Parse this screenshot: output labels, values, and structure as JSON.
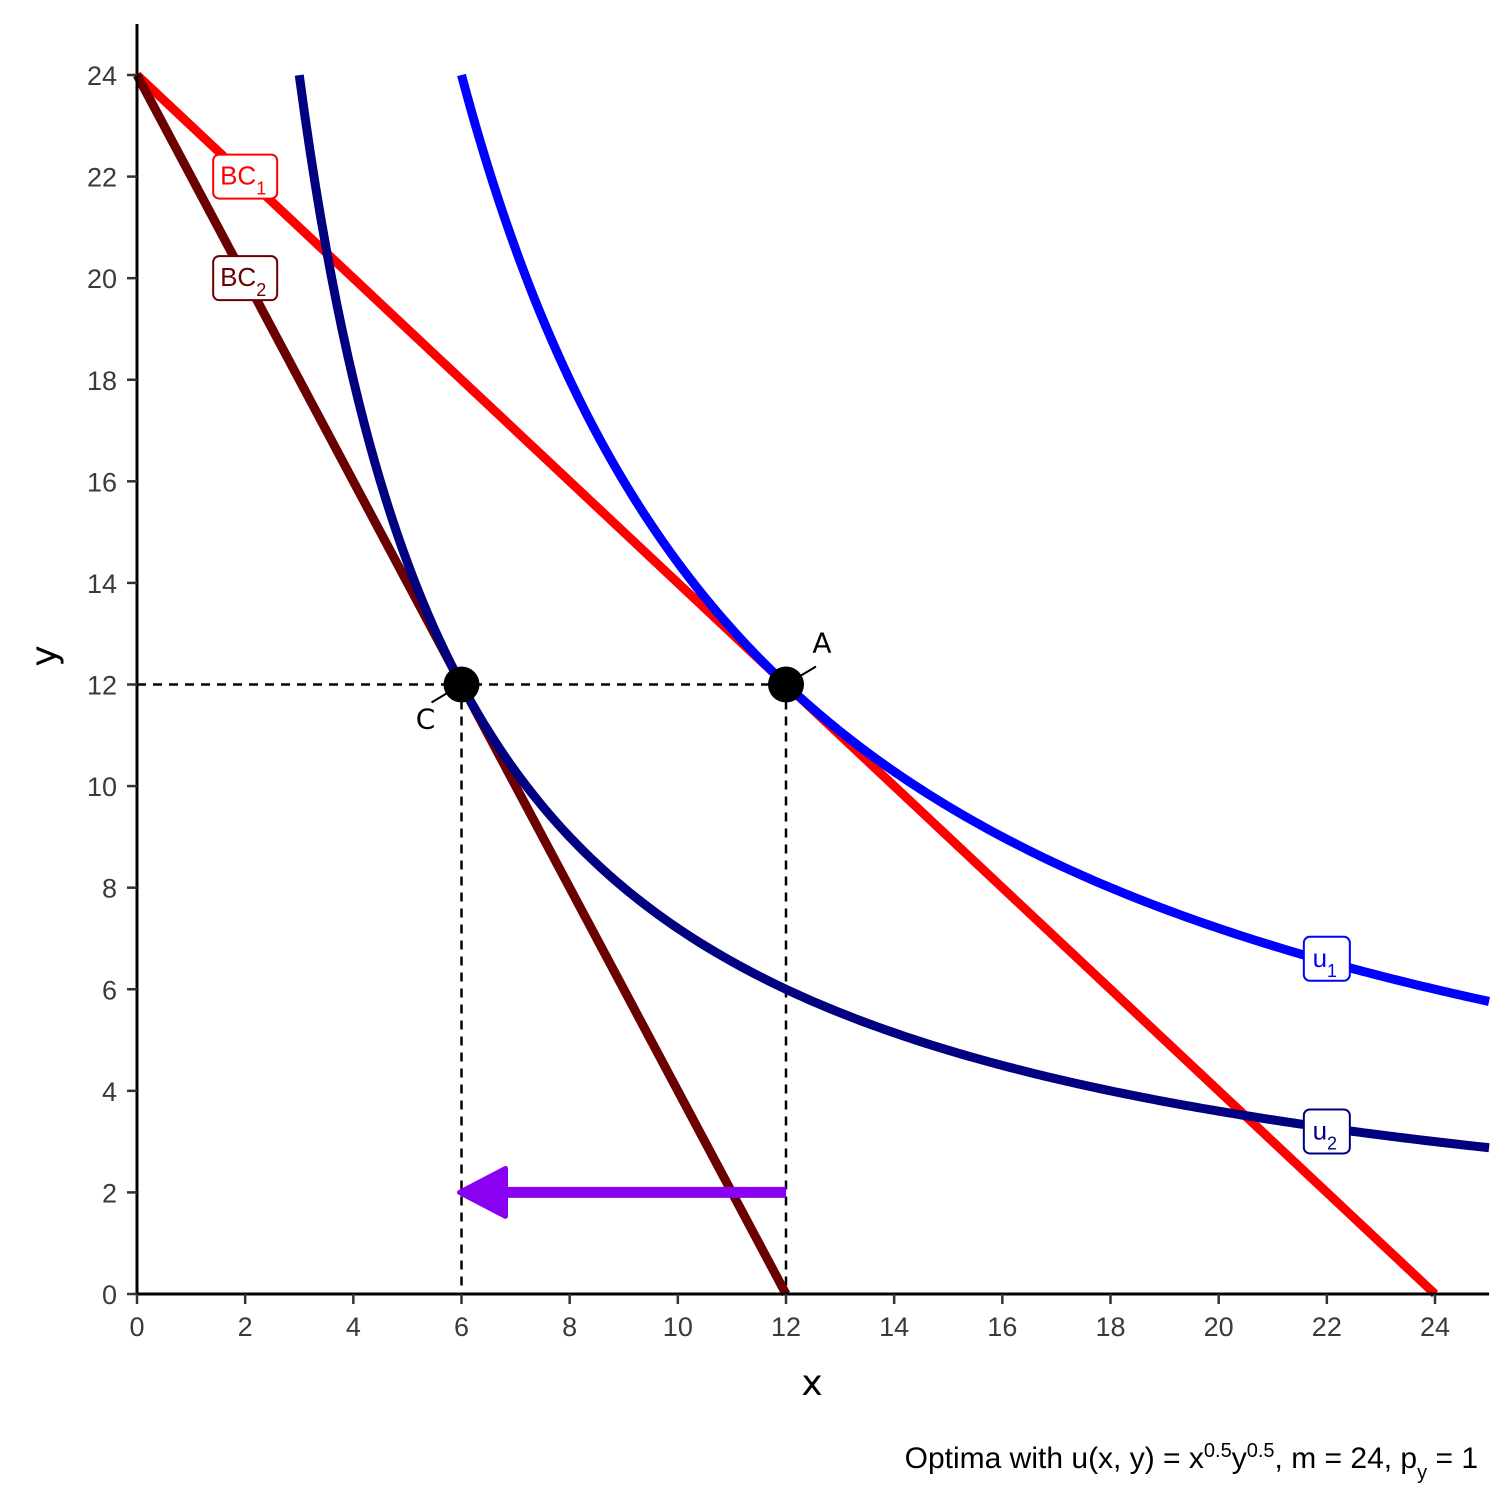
{
  "chart_data": {
    "type": "line",
    "xlabel": "x",
    "ylabel": "y",
    "xlim": [
      0,
      25
    ],
    "ylim": [
      0,
      25
    ],
    "x_ticks": [
      "0",
      "2",
      "4",
      "6",
      "8",
      "10",
      "12",
      "14",
      "16",
      "18",
      "20",
      "22",
      "24"
    ],
    "y_ticks": [
      "0",
      "2",
      "4",
      "6",
      "8",
      "10",
      "12",
      "14",
      "16",
      "18",
      "20",
      "22",
      "24"
    ],
    "caption": {
      "prefix": "Optima with u",
      "args": "(x, y)",
      "eq": " = x",
      "exp1": "0.5",
      "mid": "y",
      "exp2": "0.5",
      "tail": ", m = 24, p",
      "sub": "y",
      "end": " = 1"
    },
    "series": [
      {
        "name": "BC1",
        "label_main": "BC",
        "label_sub": "1",
        "kind": "budget",
        "x_intercept": 24,
        "y_intercept": 24,
        "color": "#ff0000",
        "label_at": [
          2,
          22
        ]
      },
      {
        "name": "BC2",
        "label_main": "BC",
        "label_sub": "2",
        "kind": "budget",
        "x_intercept": 12,
        "y_intercept": 24,
        "color": "#6b0000",
        "label_at": [
          2,
          20
        ]
      },
      {
        "name": "u1",
        "label_main": "u",
        "label_sub": "1",
        "kind": "indifference",
        "utility": 12,
        "x_from": 6,
        "x_to": 25,
        "color": "#0000ff",
        "label_at": [
          22,
          6.6
        ]
      },
      {
        "name": "u2",
        "label_main": "u",
        "label_sub": "2",
        "kind": "indifference",
        "utility": 8.485,
        "x_from": 3,
        "x_to": 25,
        "color": "#000080",
        "label_at": [
          22,
          3.2
        ]
      }
    ],
    "points": [
      {
        "name": "A",
        "x": 12,
        "y": 12
      },
      {
        "name": "C",
        "x": 6,
        "y": 12
      }
    ],
    "arrow": {
      "from": [
        12,
        2
      ],
      "to": [
        6,
        2
      ],
      "color": "#8a00f0"
    },
    "guides": {
      "y": 12,
      "x_values": [
        6,
        12
      ]
    }
  }
}
